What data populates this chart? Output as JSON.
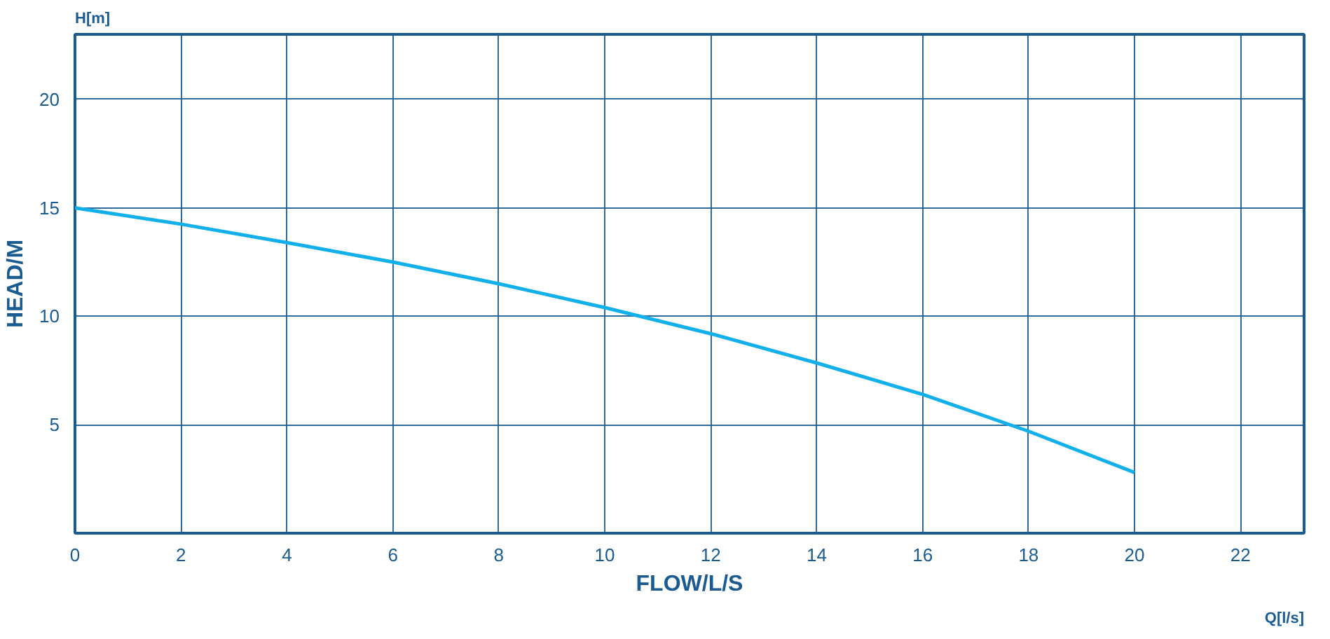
{
  "chart_data": {
    "type": "line",
    "xlabel": "FLOW/L/S",
    "ylabel": "HEAD/M",
    "annotations": [
      "H[m]",
      "Q[l/s]"
    ],
    "x": [
      0,
      2,
      4,
      6,
      8,
      10,
      12,
      14,
      16,
      18,
      20
    ],
    "series": [
      {
        "color": "#12b0ea",
        "values": [
          15,
          14.25,
          13.4,
          12.5,
          11.5,
          10.4,
          9.2,
          7.85,
          6.4,
          4.7,
          2.8
        ]
      }
    ],
    "xlim": [
      0,
      23.2
    ],
    "xticks": [
      0,
      2,
      4,
      6,
      8,
      10,
      12,
      14,
      16,
      18,
      20,
      22
    ],
    "ylim": [
      0,
      23
    ],
    "yticks": [
      5,
      10,
      15,
      20
    ],
    "grid": true,
    "line_style": "solid"
  }
}
